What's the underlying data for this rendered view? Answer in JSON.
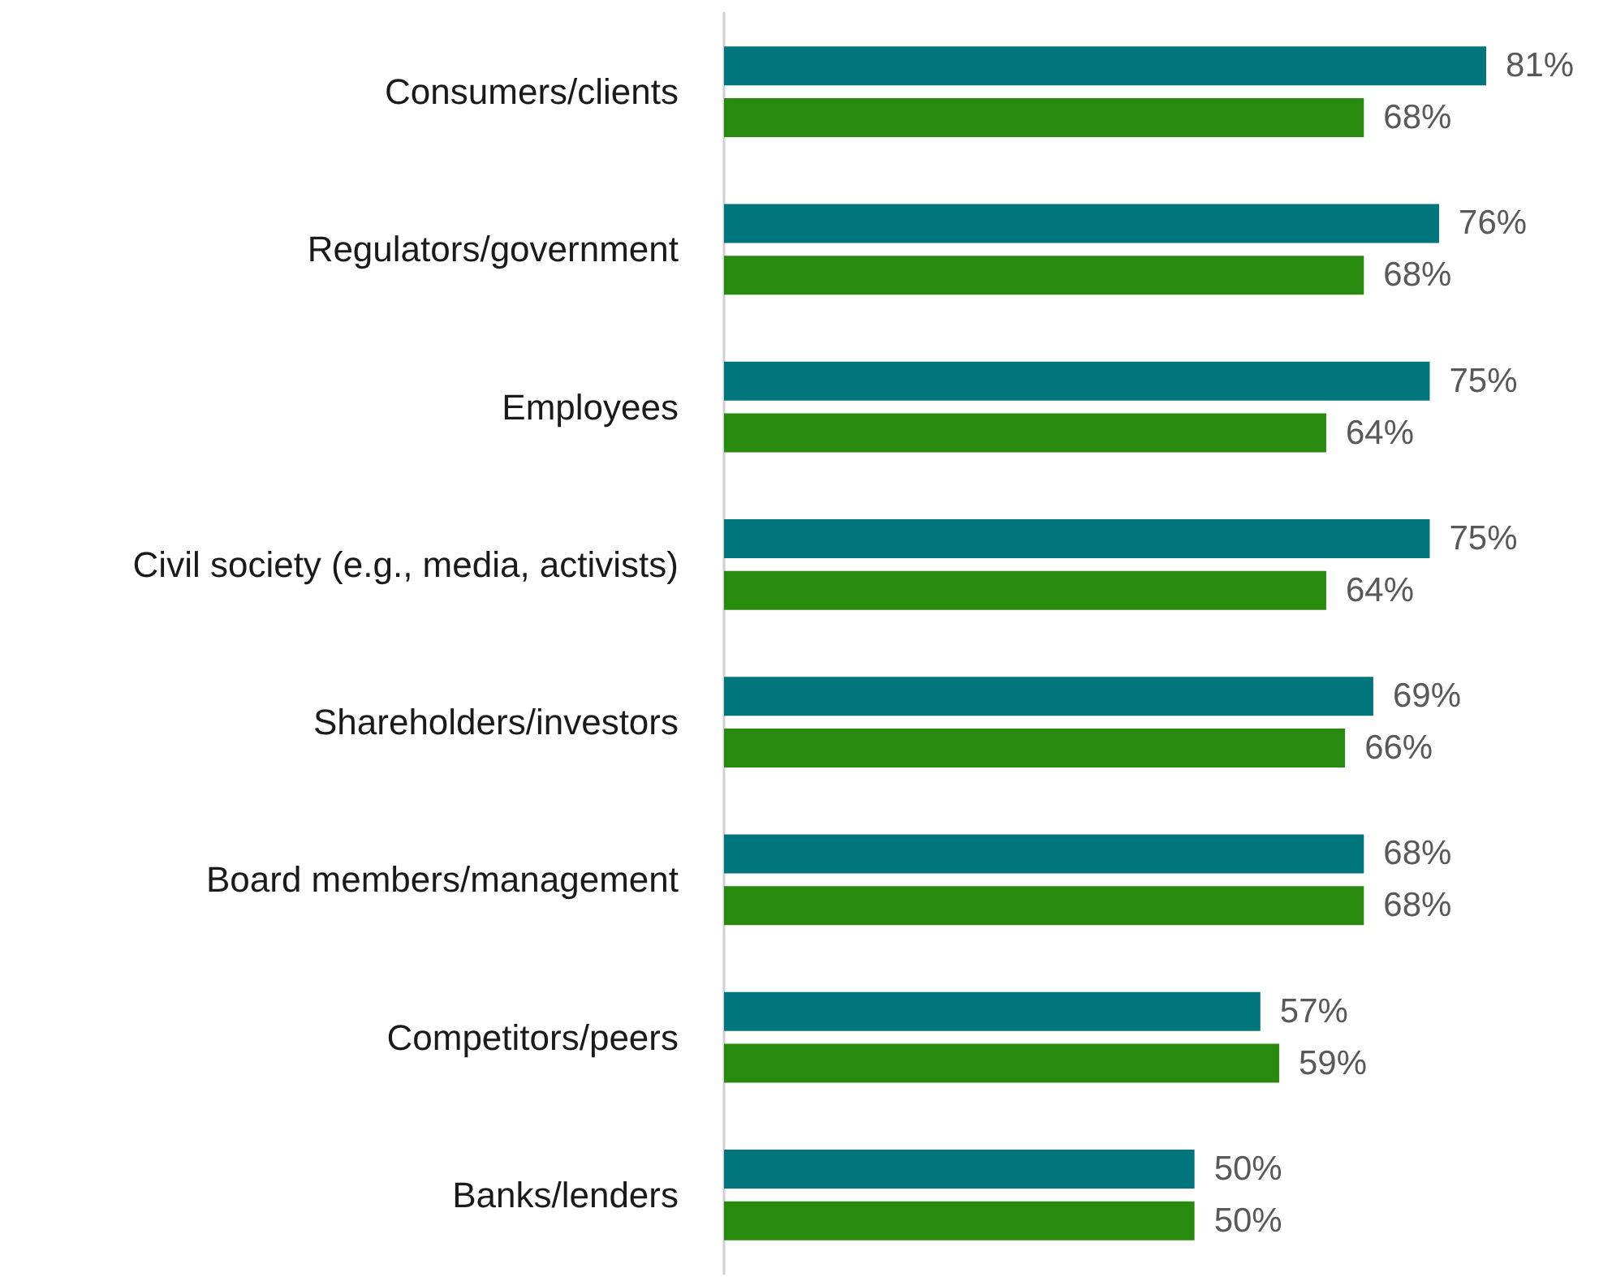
{
  "chart_data": {
    "type": "bar",
    "orientation": "horizontal",
    "categories": [
      "Consumers/clients",
      "Regulators/government",
      "Employees",
      "Civil society (e.g., media, activists)",
      "Shareholders/investors",
      "Board members/management",
      "Competitors/peers",
      "Banks/lenders"
    ],
    "series": [
      {
        "color": "#00757c",
        "values": [
          81,
          76,
          75,
          75,
          69,
          68,
          57,
          50
        ],
        "value_labels": [
          "81%",
          "76%",
          "75%",
          "75%",
          "69%",
          "68%",
          "57%",
          "50%"
        ]
      },
      {
        "color": "#298a10",
        "values": [
          68,
          68,
          64,
          64,
          66,
          68,
          59,
          50
        ],
        "value_labels": [
          "68%",
          "68%",
          "64%",
          "64%",
          "66%",
          "68%",
          "59%",
          "50%"
        ]
      }
    ]
  }
}
